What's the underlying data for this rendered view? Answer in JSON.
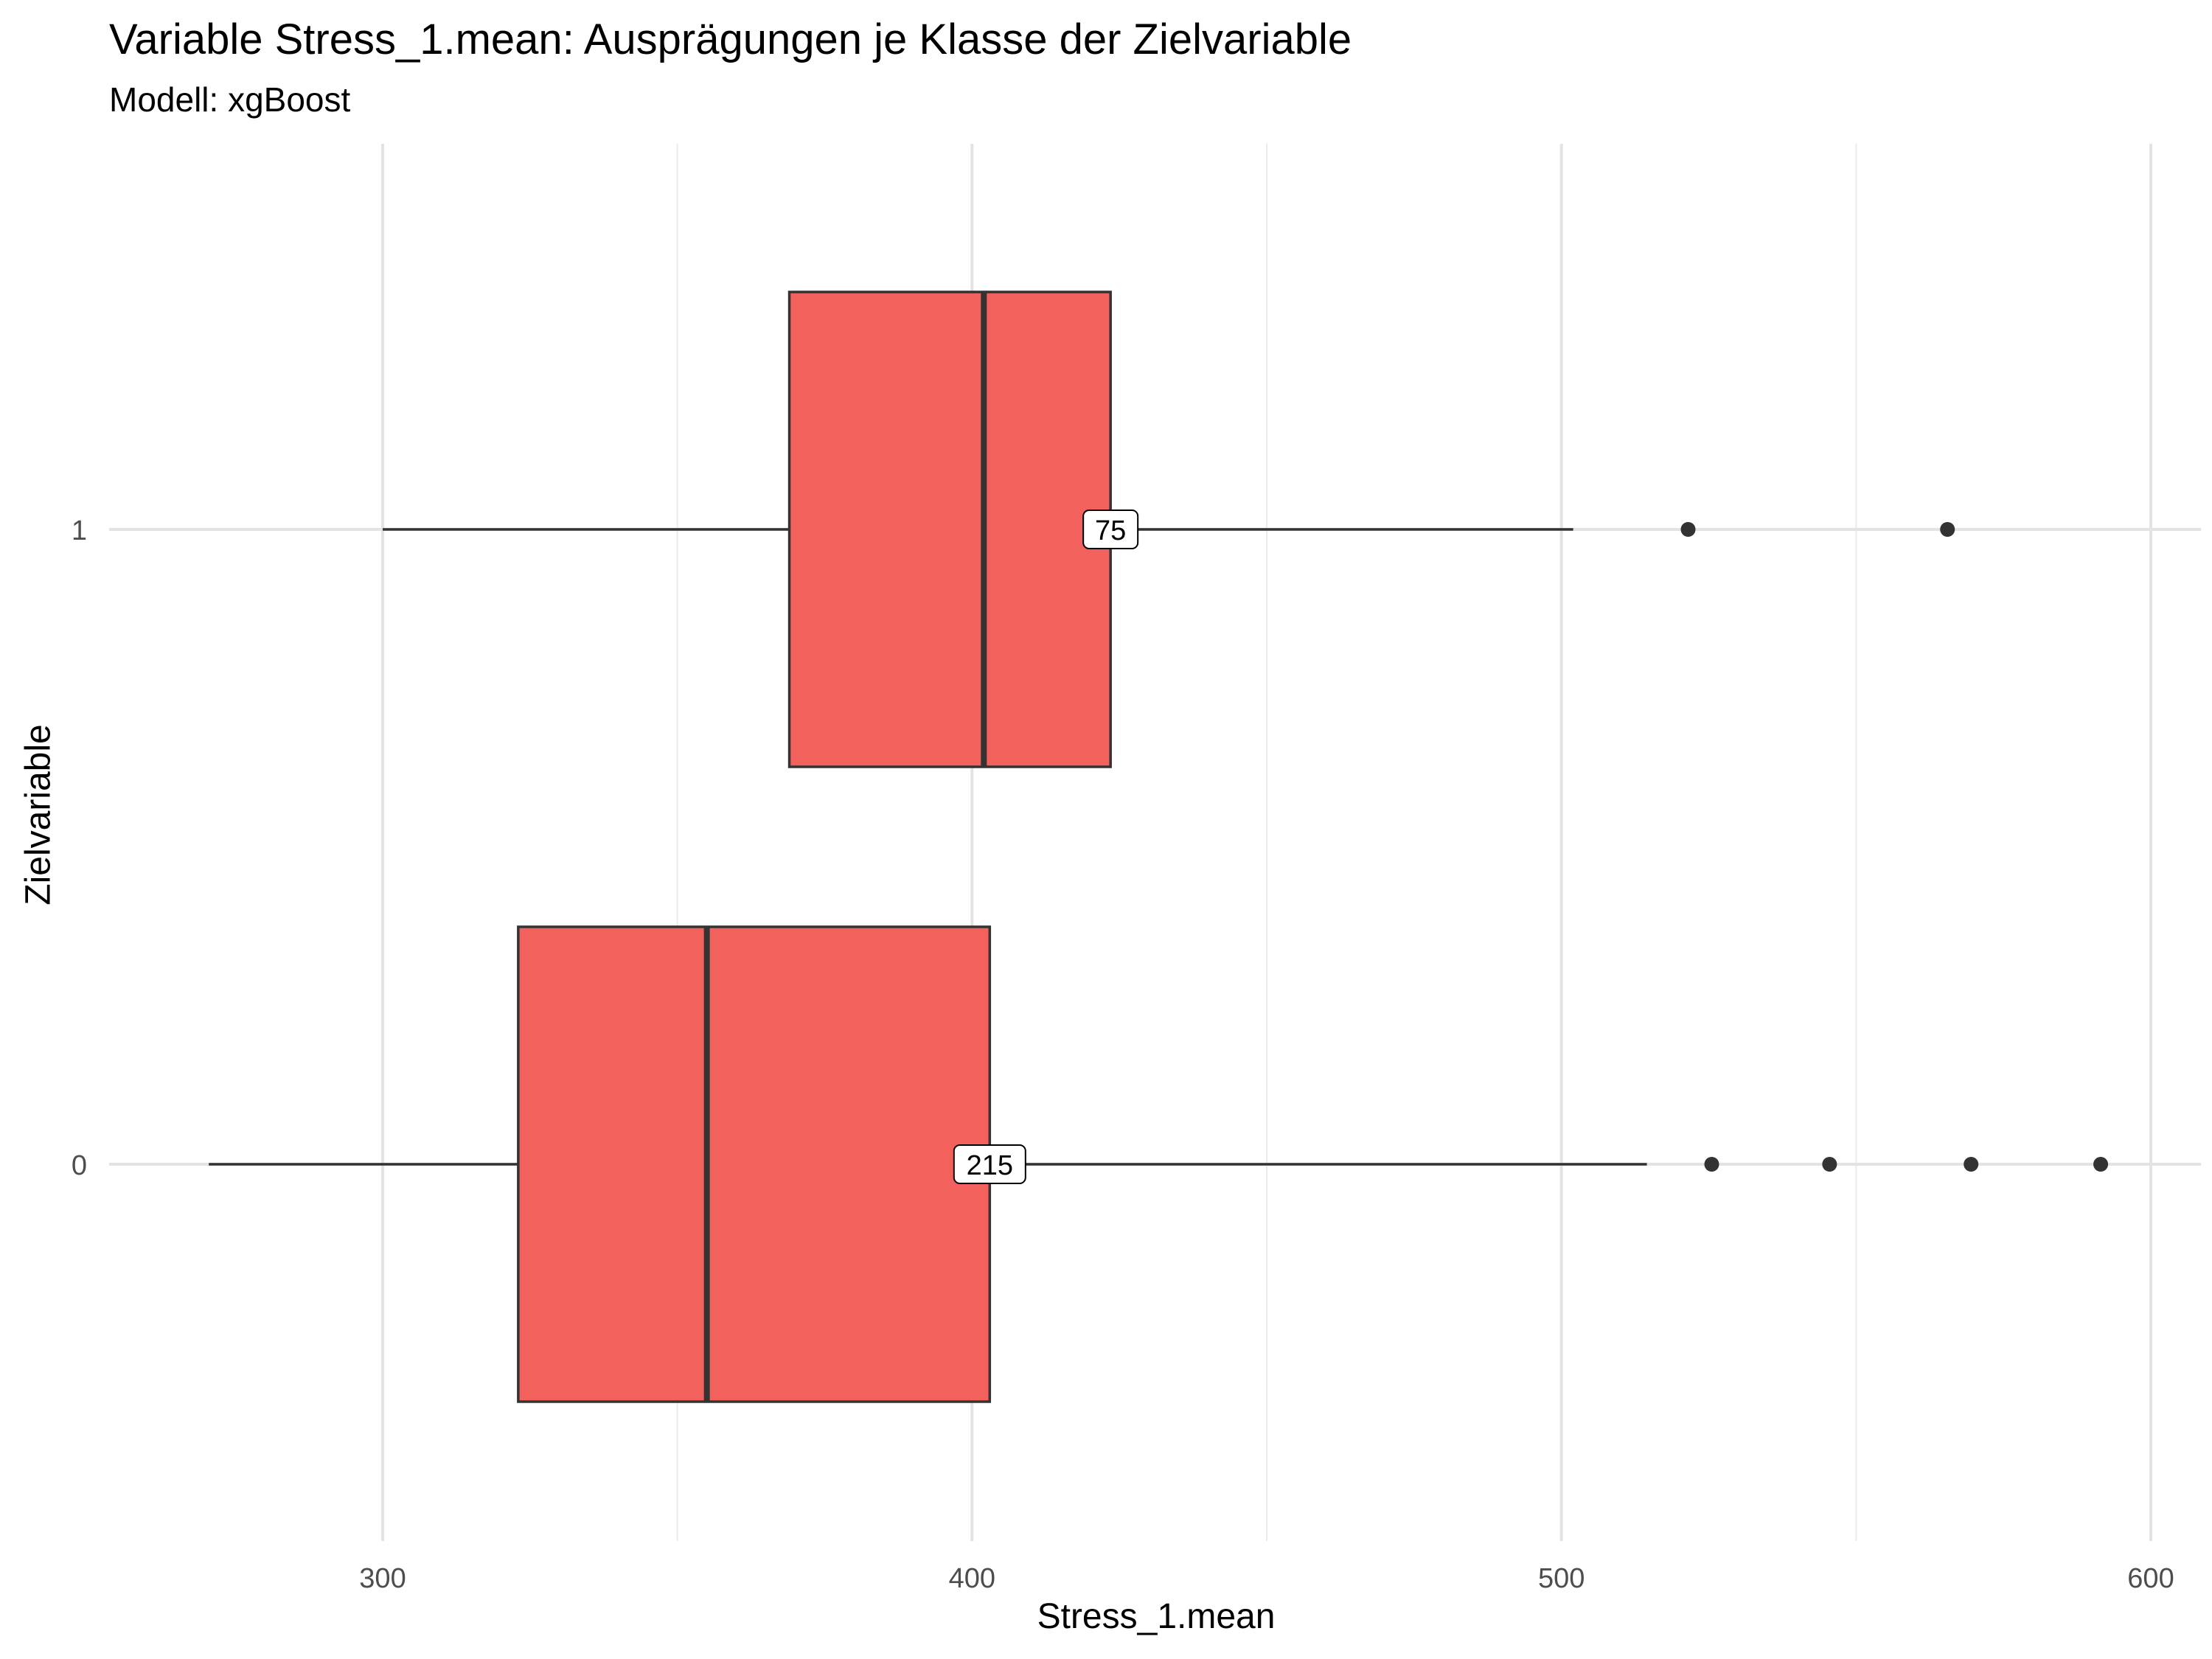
{
  "title": "Variable Stress_1.mean: Ausprägungen je Klasse der Zielvariable",
  "subtitle": "Modell: xgBoost",
  "chart_data": {
    "type": "boxplot",
    "orientation": "horizontal",
    "xlabel": "Stress_1.mean",
    "ylabel": "Zielvariable",
    "xlim": [
      250,
      608
    ],
    "xticks": [
      300,
      400,
      500,
      600
    ],
    "categories": [
      "0",
      "1"
    ],
    "grid": true,
    "fill_color": "#F2615C",
    "boxes": [
      {
        "category": "1",
        "whisker_low": 300,
        "q1": 369,
        "median": 402,
        "q3": 423.5,
        "whisker_high": 502,
        "outliers": [
          521.5,
          565.5
        ],
        "n": 75,
        "n_label": "75"
      },
      {
        "category": "0",
        "whisker_low": 270.5,
        "q1": 323,
        "median": 355,
        "q3": 403,
        "whisker_high": 514.5,
        "outliers": [
          525.5,
          545.5,
          569.5,
          591.5
        ],
        "n": 215,
        "n_label": "215"
      }
    ]
  }
}
